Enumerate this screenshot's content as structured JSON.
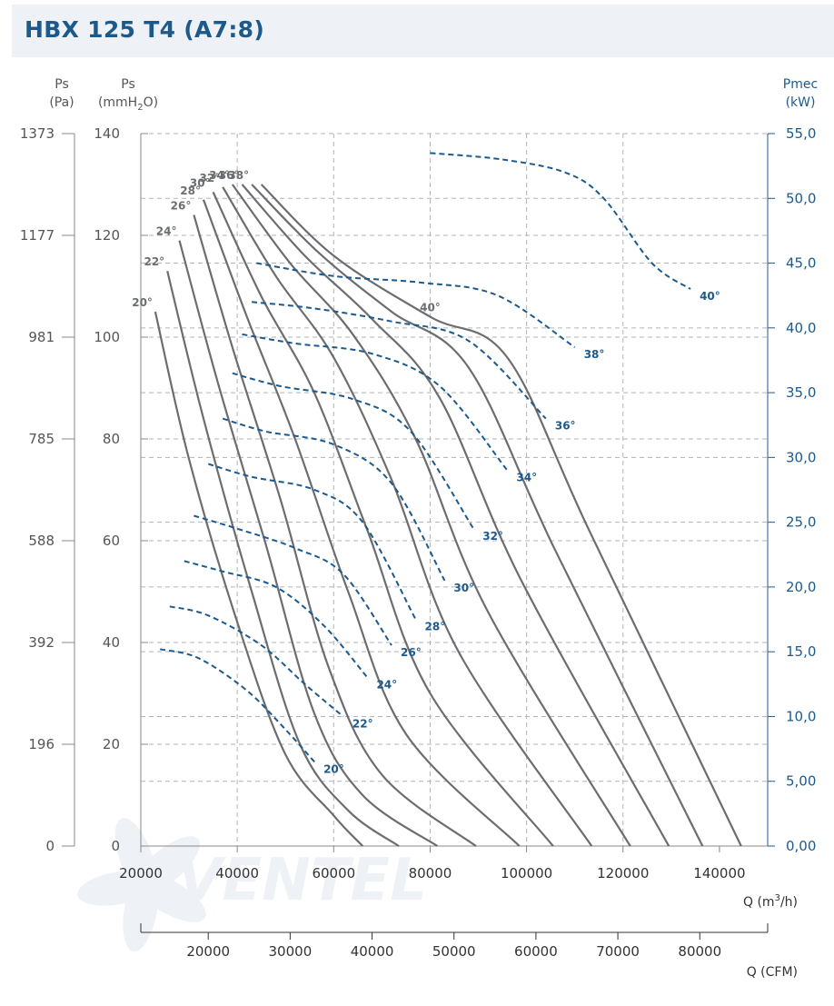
{
  "title": "HBX 125 T4 (A7:8)",
  "colors": {
    "pressure_curve": "#6b6d70",
    "power_curve": "#1c5a8e",
    "grid": "#b0b3b8",
    "axis_text_left": "#555555",
    "axis_text_right": "#1c5a8e",
    "title": "#1d5a8c",
    "title_bg": "#eef1f5"
  },
  "axes": {
    "ps_pa": {
      "title": "Ps",
      "unit": "(Pa)",
      "ticks": [
        "0",
        "196",
        "392",
        "588",
        "785",
        "981",
        "1177",
        "1373"
      ]
    },
    "ps_mmh2o": {
      "title": "Ps",
      "unit_prefix": "(mmH",
      "unit_sub": "2",
      "unit_suffix": "O)",
      "ticks": [
        "0",
        "20",
        "40",
        "60",
        "80",
        "100",
        "120",
        "140"
      ]
    },
    "pmec": {
      "title": "Pmec",
      "unit": "(kW)",
      "ticks": [
        "0,00",
        "5,00",
        "10,0",
        "15,0",
        "20,0",
        "25,0",
        "30,0",
        "35,0",
        "40,0",
        "45,0",
        "50,0",
        "55,0"
      ]
    },
    "q_m3h": {
      "label_prefix": "Q (m",
      "label_sup": "3",
      "label_suffix": "/h)",
      "ticks": [
        "20000",
        "40000",
        "60000",
        "80000",
        "100000",
        "120000",
        "140000"
      ]
    },
    "q_cfm": {
      "label": "Q (CFM)",
      "ticks": [
        "20000",
        "30000",
        "40000",
        "50000",
        "60000",
        "70000",
        "80000"
      ]
    }
  },
  "chart_data": {
    "type": "line",
    "title": "HBX 125 T4 (A7:8)",
    "x_unit": "m3/h",
    "xlim": [
      20000,
      150000
    ],
    "ylim_mmh2o": [
      0,
      140
    ],
    "ylim_kw": [
      0,
      55
    ],
    "grid": true,
    "pressure_curves": [
      {
        "name": "20°",
        "points": [
          [
            23000,
            105
          ],
          [
            30000,
            76
          ],
          [
            40000,
            44
          ],
          [
            50000,
            18
          ],
          [
            60000,
            6
          ],
          [
            66000,
            0
          ]
        ]
      },
      {
        "name": "22°",
        "points": [
          [
            25500,
            113
          ],
          [
            33000,
            84
          ],
          [
            43000,
            50
          ],
          [
            53000,
            20
          ],
          [
            63000,
            7
          ],
          [
            73500,
            0
          ]
        ]
      },
      {
        "name": "24°",
        "points": [
          [
            28000,
            119
          ],
          [
            36000,
            91
          ],
          [
            46000,
            59
          ],
          [
            56000,
            26
          ],
          [
            66000,
            10
          ],
          [
            81500,
            0
          ]
        ]
      },
      {
        "name": "26°",
        "points": [
          [
            31000,
            124
          ],
          [
            39000,
            98
          ],
          [
            49000,
            68
          ],
          [
            59000,
            35
          ],
          [
            70000,
            14
          ],
          [
            89500,
            0
          ]
        ]
      },
      {
        "name": "28°",
        "points": [
          [
            33000,
            127
          ],
          [
            42000,
            104
          ],
          [
            52000,
            80
          ],
          [
            63000,
            50
          ],
          [
            75000,
            22
          ],
          [
            98500,
            0
          ]
        ]
      },
      {
        "name": "30°",
        "points": [
          [
            35000,
            128.5
          ],
          [
            45000,
            108
          ],
          [
            56000,
            89
          ],
          [
            67000,
            62
          ],
          [
            80000,
            30
          ],
          [
            105500,
            0
          ]
        ]
      },
      {
        "name": "32°",
        "points": [
          [
            37000,
            129.5
          ],
          [
            48000,
            112
          ],
          [
            60000,
            96
          ],
          [
            72000,
            72
          ],
          [
            86000,
            38
          ],
          [
            113500,
            0
          ]
        ]
      },
      {
        "name": "34°",
        "points": [
          [
            39000,
            130
          ],
          [
            51000,
            114.5
          ],
          [
            64000,
            100.5
          ],
          [
            77000,
            80
          ],
          [
            92000,
            46
          ],
          [
            121500,
            0
          ]
        ]
      },
      {
        "name": "36°",
        "points": [
          [
            41000,
            130
          ],
          [
            54000,
            116
          ],
          [
            68000,
            103.5
          ],
          [
            82000,
            88
          ],
          [
            99000,
            52
          ],
          [
            129500,
            0
          ]
        ]
      },
      {
        "name": "38°",
        "points": [
          [
            43000,
            130
          ],
          [
            57000,
            116.5
          ],
          [
            72000,
            105
          ],
          [
            88000,
            94
          ],
          [
            106000,
            58
          ],
          [
            136500,
            0
          ]
        ]
      },
      {
        "name": "40°",
        "points": [
          [
            45000,
            130
          ],
          [
            60000,
            116
          ],
          [
            80000,
            104
          ],
          [
            96000,
            96
          ],
          [
            113000,
            62
          ],
          [
            144500,
            0
          ]
        ]
      }
    ],
    "power_curves": [
      {
        "name": "20°",
        "points": [
          [
            24000,
            15.2
          ],
          [
            32000,
            14.5
          ],
          [
            42000,
            12.0
          ],
          [
            50000,
            9.0
          ],
          [
            56000,
            6.5
          ]
        ]
      },
      {
        "name": "22°",
        "points": [
          [
            26000,
            18.5
          ],
          [
            34000,
            17.8
          ],
          [
            45000,
            15.5
          ],
          [
            54000,
            12.5
          ],
          [
            62000,
            10.0
          ]
        ]
      },
      {
        "name": "24°",
        "points": [
          [
            29000,
            22.0
          ],
          [
            37000,
            21.2
          ],
          [
            48000,
            20.0
          ],
          [
            58000,
            17.0
          ],
          [
            67000,
            13.0
          ]
        ]
      },
      {
        "name": "26°",
        "points": [
          [
            31000,
            25.5
          ],
          [
            40000,
            24.5
          ],
          [
            52000,
            23.0
          ],
          [
            62000,
            21.0
          ],
          [
            72000,
            15.5
          ]
        ]
      },
      {
        "name": "28°",
        "points": [
          [
            34000,
            29.5
          ],
          [
            43000,
            28.5
          ],
          [
            56000,
            27.5
          ],
          [
            66000,
            25.0
          ],
          [
            77000,
            17.5
          ]
        ]
      },
      {
        "name": "30°",
        "points": [
          [
            37000,
            33.0
          ],
          [
            46000,
            32.0
          ],
          [
            60000,
            31.0
          ],
          [
            72000,
            28.0
          ],
          [
            83000,
            20.5
          ]
        ]
      },
      {
        "name": "32°",
        "points": [
          [
            39000,
            36.5
          ],
          [
            49000,
            35.5
          ],
          [
            64000,
            34.5
          ],
          [
            76000,
            32.0
          ],
          [
            89000,
            24.5
          ]
        ]
      },
      {
        "name": "34°",
        "points": [
          [
            41000,
            39.5
          ],
          [
            52000,
            38.8
          ],
          [
            68000,
            38.0
          ],
          [
            82000,
            35.5
          ],
          [
            96000,
            29.0
          ]
        ]
      },
      {
        "name": "36°",
        "points": [
          [
            43000,
            42.0
          ],
          [
            56000,
            41.5
          ],
          [
            72000,
            40.5
          ],
          [
            88000,
            39.0
          ],
          [
            104000,
            33.0
          ]
        ]
      },
      {
        "name": "38°",
        "points": [
          [
            44000,
            45.0
          ],
          [
            60000,
            44.0
          ],
          [
            78000,
            43.5
          ],
          [
            94000,
            42.5
          ],
          [
            110000,
            38.5
          ]
        ]
      },
      {
        "name": "40°",
        "points": [
          [
            80000,
            53.5
          ],
          [
            95000,
            53.0
          ],
          [
            108000,
            52.0
          ],
          [
            116000,
            50.0
          ],
          [
            126000,
            45.0
          ],
          [
            134000,
            43.0
          ]
        ]
      }
    ]
  }
}
